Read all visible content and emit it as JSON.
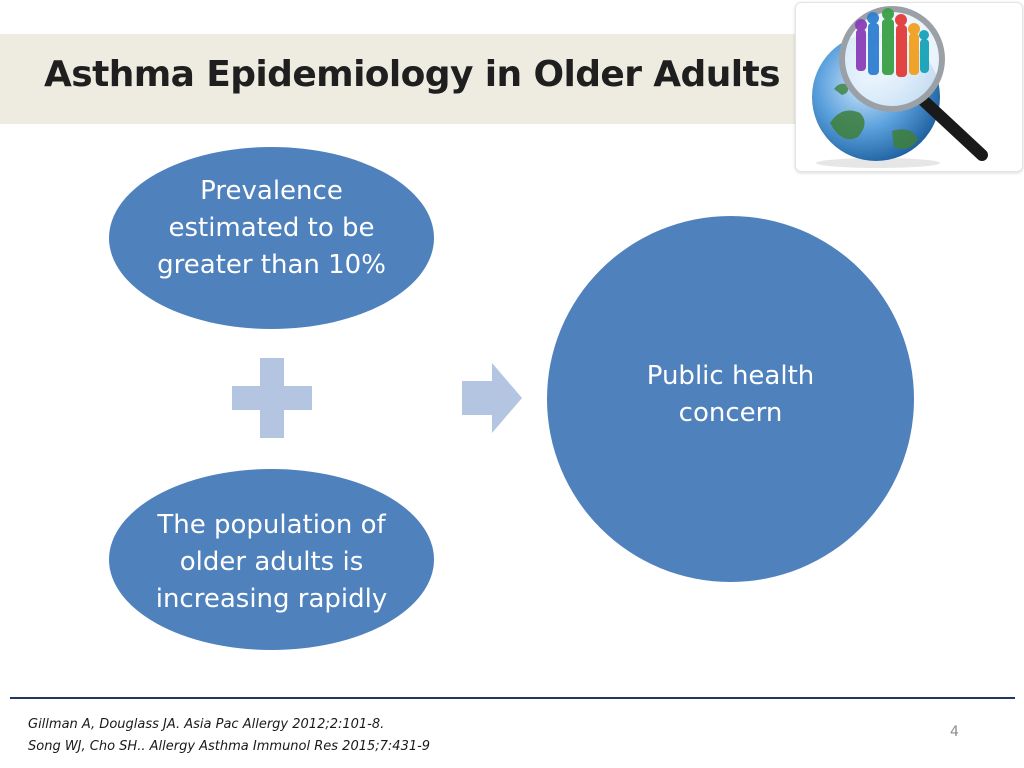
{
  "slide": {
    "title": "Asthma Epidemiology in Older Adults",
    "page_number": "4"
  },
  "diagram": {
    "node_prevalence": "Prevalence estimated to be greater than 10%",
    "node_population": "The population of older adults is increasing rapidly",
    "node_outcome": "Public health concern",
    "operator_icon": "plus-icon",
    "connector_icon": "right-arrow-icon"
  },
  "references": [
    "Gillman A, Douglass JA. Asia Pac Allergy 2012;2:101-8.",
    "Song WJ, Cho SH.. Allergy Asthma Immunol Res 2015;7:431-9"
  ],
  "colors": {
    "node_fill": "#4f81bd",
    "icon_fill": "#b3c5e0",
    "title_band": "#eeece1",
    "footer_rule": "#1f3864"
  }
}
